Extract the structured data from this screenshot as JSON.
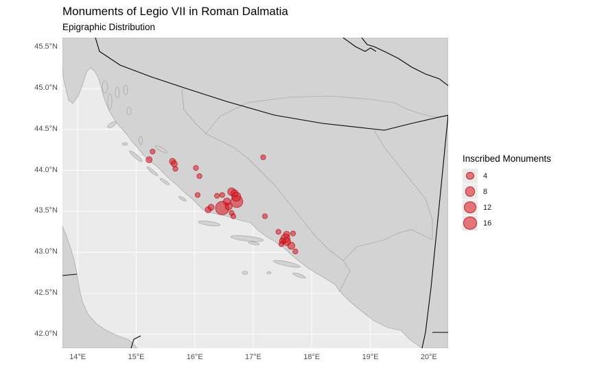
{
  "title": "Monuments of Legio VII in Roman Dalmatia",
  "subtitle": "Epigraphic Distribution",
  "colors": {
    "panel": "#ebebeb",
    "land": "#d3d3d3",
    "border": "#000000",
    "point": "#dc141e"
  },
  "axes": {
    "x_ticks": [
      "14°E",
      "15°E",
      "16°E",
      "17°E",
      "18°E",
      "19°E",
      "20°E"
    ],
    "y_ticks": [
      "45.5°N",
      "45.0°N",
      "44.5°N",
      "44.0°N",
      "43.5°N",
      "43.0°N",
      "42.5°N",
      "42.0°N"
    ]
  },
  "legend": {
    "title": "Inscribed Monuments",
    "entries": [
      {
        "label": "4",
        "value": 4
      },
      {
        "label": "8",
        "value": 8
      },
      {
        "label": "12",
        "value": 12
      },
      {
        "label": "16",
        "value": 16
      }
    ]
  },
  "chart_data": {
    "type": "scatter",
    "title": "Monuments of Legio VII in Roman Dalmatia",
    "subtitle": "Epigraphic Distribution",
    "xlabel": "",
    "ylabel": "",
    "xlim": [
      13.74,
      20.33
    ],
    "ylim": [
      41.83,
      45.62
    ],
    "grid": true,
    "legend_position": "right",
    "points": [
      {
        "lon": 15.28,
        "lat": 44.23,
        "n": 1
      },
      {
        "lon": 15.22,
        "lat": 44.13,
        "n": 2
      },
      {
        "lon": 15.62,
        "lat": 44.11,
        "n": 2
      },
      {
        "lon": 15.65,
        "lat": 44.08,
        "n": 2
      },
      {
        "lon": 15.67,
        "lat": 44.02,
        "n": 1
      },
      {
        "lon": 16.02,
        "lat": 44.03,
        "n": 1
      },
      {
        "lon": 16.08,
        "lat": 43.93,
        "n": 1
      },
      {
        "lon": 17.17,
        "lat": 44.16,
        "n": 1
      },
      {
        "lon": 16.05,
        "lat": 43.7,
        "n": 1
      },
      {
        "lon": 16.38,
        "lat": 43.69,
        "n": 1
      },
      {
        "lon": 16.47,
        "lat": 43.7,
        "n": 1
      },
      {
        "lon": 16.28,
        "lat": 43.55,
        "n": 2
      },
      {
        "lon": 16.23,
        "lat": 43.52,
        "n": 2
      },
      {
        "lon": 16.47,
        "lat": 43.54,
        "n": 16
      },
      {
        "lon": 16.58,
        "lat": 43.56,
        "n": 3
      },
      {
        "lon": 16.55,
        "lat": 43.62,
        "n": 3
      },
      {
        "lon": 16.63,
        "lat": 43.74,
        "n": 4
      },
      {
        "lon": 16.68,
        "lat": 43.72,
        "n": 3
      },
      {
        "lon": 16.71,
        "lat": 43.68,
        "n": 6
      },
      {
        "lon": 16.72,
        "lat": 43.62,
        "n": 12
      },
      {
        "lon": 16.63,
        "lat": 43.48,
        "n": 1
      },
      {
        "lon": 16.66,
        "lat": 43.44,
        "n": 1
      },
      {
        "lon": 17.2,
        "lat": 43.44,
        "n": 1
      },
      {
        "lon": 17.43,
        "lat": 43.25,
        "n": 1
      },
      {
        "lon": 17.57,
        "lat": 43.22,
        "n": 2
      },
      {
        "lon": 17.68,
        "lat": 43.23,
        "n": 1
      },
      {
        "lon": 17.55,
        "lat": 43.17,
        "n": 6
      },
      {
        "lon": 17.5,
        "lat": 43.14,
        "n": 2
      },
      {
        "lon": 17.57,
        "lat": 43.13,
        "n": 4
      },
      {
        "lon": 17.65,
        "lat": 43.08,
        "n": 3
      },
      {
        "lon": 17.48,
        "lat": 43.1,
        "n": 1
      },
      {
        "lon": 17.72,
        "lat": 43.01,
        "n": 1
      }
    ]
  }
}
